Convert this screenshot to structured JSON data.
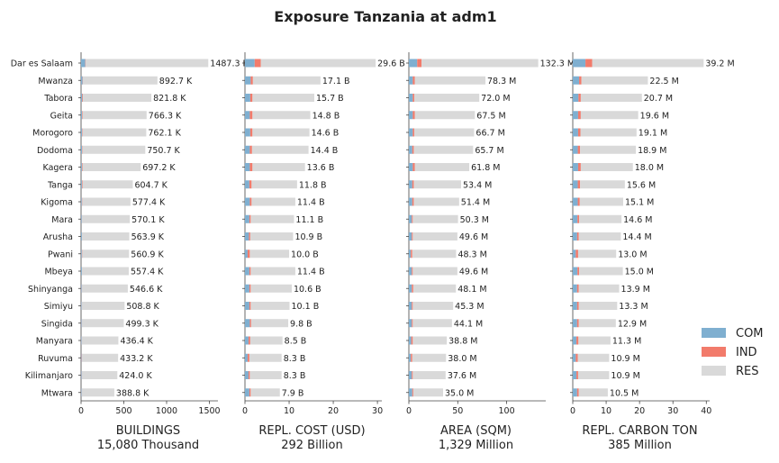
{
  "chart_data": {
    "type": "bar",
    "orientation": "horizontal",
    "stacked": true,
    "title": "Exposure Tanzania at adm1",
    "categories": [
      "Dar es Salaam",
      "Mwanza",
      "Tabora",
      "Geita",
      "Morogoro",
      "Dodoma",
      "Kagera",
      "Tanga",
      "Kigoma",
      "Mara",
      "Arusha",
      "Pwani",
      "Mbeya",
      "Shinyanga",
      "Simiyu",
      "Singida",
      "Manyara",
      "Ruvuma",
      "Kilimanjaro",
      "Mtwara"
    ],
    "legend": {
      "placement": "bottom-right",
      "items": [
        {
          "key": "COM",
          "label": "COM",
          "color": "#7FAFD0"
        },
        {
          "key": "IND",
          "label": "IND",
          "color": "#F27B6B"
        },
        {
          "key": "RES",
          "label": "RES",
          "color": "#D9D9D9"
        }
      ]
    },
    "panels": [
      {
        "xlabel": "BUILDINGS",
        "total_label": "15,080 Thousand",
        "xlim": [
          0,
          1600
        ],
        "xticks": [
          0,
          500,
          1000,
          1500
        ],
        "unit_suffix": " K",
        "label_decimals": 1,
        "totals": [
          1487.3,
          892.7,
          821.8,
          766.3,
          762.1,
          750.7,
          697.2,
          604.7,
          577.4,
          570.1,
          563.9,
          560.9,
          557.4,
          546.6,
          508.8,
          499.3,
          436.4,
          433.2,
          424.0,
          388.8
        ],
        "com": [
          50,
          18,
          14,
          12,
          12,
          12,
          10,
          10,
          9,
          9,
          10,
          9,
          10,
          8,
          7,
          8,
          7,
          7,
          8,
          7
        ],
        "ind": [
          5,
          3,
          8,
          7,
          6,
          5,
          6,
          7,
          5,
          2,
          2,
          5,
          2,
          2,
          2,
          2,
          2,
          4,
          2,
          2
        ]
      },
      {
        "xlabel": "REPL. COST (USD)",
        "total_label": "292 Billion",
        "xlim": [
          0,
          31
        ],
        "xticks": [
          0,
          10,
          20,
          30
        ],
        "unit_suffix": " B",
        "label_decimals": 1,
        "totals": [
          29.6,
          17.1,
          15.7,
          14.8,
          14.6,
          14.4,
          13.6,
          11.8,
          11.4,
          11.1,
          10.9,
          10.0,
          11.4,
          10.6,
          10.1,
          9.8,
          8.5,
          8.3,
          8.3,
          7.9
        ],
        "com": [
          2.2,
          1.3,
          1.2,
          1.1,
          1.2,
          1.1,
          1.1,
          1.0,
          1.1,
          1.0,
          0.9,
          0.6,
          1.0,
          1.0,
          1.0,
          1.1,
          0.8,
          0.6,
          0.8,
          1.0
        ],
        "ind": [
          1.4,
          0.5,
          0.5,
          0.6,
          0.5,
          0.5,
          0.6,
          0.5,
          0.4,
          0.3,
          0.3,
          0.5,
          0.3,
          0.3,
          0.3,
          0.3,
          0.4,
          0.4,
          0.3,
          0.3
        ]
      },
      {
        "xlabel": "AREA (SQM)",
        "total_label": "1,329 Million",
        "xlim": [
          0,
          140
        ],
        "xticks": [
          0,
          50,
          100
        ],
        "unit_suffix": " M",
        "label_decimals": 1,
        "totals": [
          132.3,
          78.3,
          72.0,
          67.5,
          66.7,
          65.7,
          61.8,
          53.4,
          51.4,
          50.3,
          49.6,
          48.3,
          49.6,
          48.1,
          45.3,
          44.1,
          38.8,
          38.0,
          37.6,
          35.0
        ],
        "com": [
          8.5,
          4.0,
          4.0,
          4.0,
          4.0,
          3.5,
          4.0,
          3.5,
          3.5,
          3.0,
          3.0,
          2.0,
          3.0,
          3.0,
          3.0,
          3.0,
          2.5,
          2.0,
          3.0,
          3.5
        ],
        "ind": [
          4.5,
          2.0,
          1.5,
          2.0,
          1.5,
          1.5,
          2.0,
          1.5,
          1.5,
          1.0,
          1.0,
          1.5,
          1.0,
          1.5,
          1.0,
          1.0,
          1.5,
          1.5,
          1.0,
          1.0
        ]
      },
      {
        "xlabel": "REPL. CARBON TON",
        "total_label": "385 Million",
        "xlim": [
          0,
          41
        ],
        "xticks": [
          0,
          10,
          20,
          30,
          40
        ],
        "unit_suffix": " M",
        "label_decimals": 1,
        "totals": [
          39.2,
          22.5,
          20.7,
          19.6,
          19.1,
          18.9,
          18.0,
          15.6,
          15.1,
          14.6,
          14.4,
          13.0,
          15.0,
          13.9,
          13.3,
          12.9,
          11.3,
          10.9,
          10.9,
          10.5
        ],
        "com": [
          3.8,
          1.9,
          1.7,
          1.6,
          1.6,
          1.5,
          1.6,
          1.5,
          1.5,
          1.4,
          1.3,
          0.9,
          1.4,
          1.3,
          1.3,
          1.3,
          1.1,
          0.9,
          1.1,
          1.3
        ],
        "ind": [
          2.0,
          0.7,
          0.7,
          0.8,
          0.7,
          0.7,
          0.8,
          0.7,
          0.6,
          0.5,
          0.5,
          0.7,
          0.5,
          0.5,
          0.5,
          0.5,
          0.6,
          0.6,
          0.5,
          0.5
        ]
      }
    ]
  }
}
